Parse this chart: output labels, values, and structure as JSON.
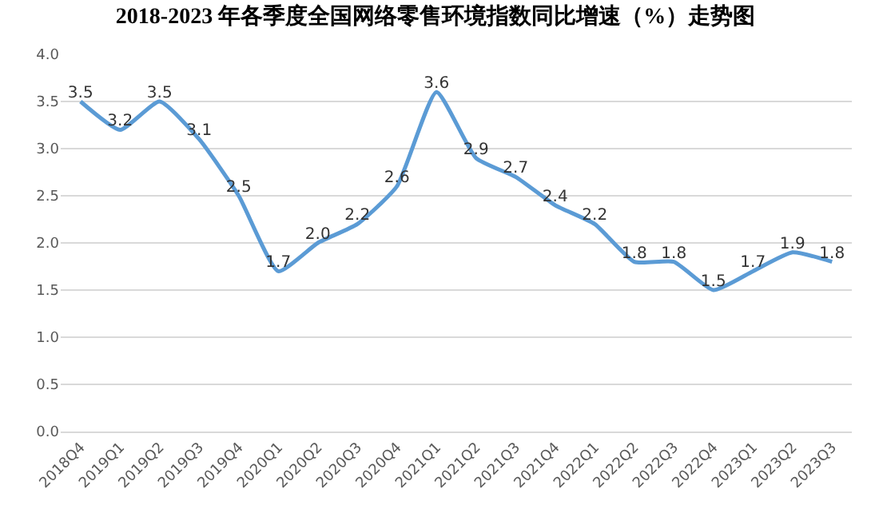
{
  "chart_data": {
    "type": "line",
    "title": "2018-2023 年各季度全国网络零售环境指数同比增速（%）走势图",
    "categories": [
      "2018Q4",
      "2019Q1",
      "2019Q2",
      "2019Q3",
      "2019Q4",
      "2020Q1",
      "2020Q2",
      "2020Q3",
      "2020Q4",
      "2021Q1",
      "2021Q2",
      "2021Q3",
      "2021Q4",
      "2022Q1",
      "2022Q2",
      "2022Q3",
      "2022Q4",
      "2023Q1",
      "2023Q2",
      "2023Q3"
    ],
    "series": [
      {
        "color": "#5b9bd5",
        "values": [
          3.5,
          3.2,
          3.5,
          3.1,
          2.5,
          1.7,
          2.0,
          2.2,
          2.6,
          3.6,
          2.9,
          2.7,
          2.4,
          2.2,
          1.8,
          1.8,
          1.5,
          1.7,
          1.9,
          1.8
        ],
        "value_labels": [
          "3.5",
          "3.2",
          "3.5",
          "3.1",
          "2.5",
          "1.7",
          "2.0",
          "2.2",
          "2.6",
          "3.6",
          "2.9",
          "2.7",
          "2.4",
          "2.2",
          "1.8",
          "1.8",
          "1.5",
          "1.7",
          "1.9",
          "1.8"
        ]
      }
    ],
    "ylim": [
      0,
      4
    ],
    "yticks": [
      {
        "value": 0,
        "label": "0.0"
      },
      {
        "value": 0.5,
        "label": "0.5"
      },
      {
        "value": 1,
        "label": "1.0"
      },
      {
        "value": 1.5,
        "label": "1.5"
      },
      {
        "value": 2,
        "label": "2.0"
      },
      {
        "value": 2.5,
        "label": "2.5"
      },
      {
        "value": 3,
        "label": "3.0"
      },
      {
        "value": 3.5,
        "label": "3.5"
      },
      {
        "value": 4,
        "label": "4.0"
      }
    ],
    "grid": "y",
    "marker": "none",
    "line_style": "solid"
  }
}
